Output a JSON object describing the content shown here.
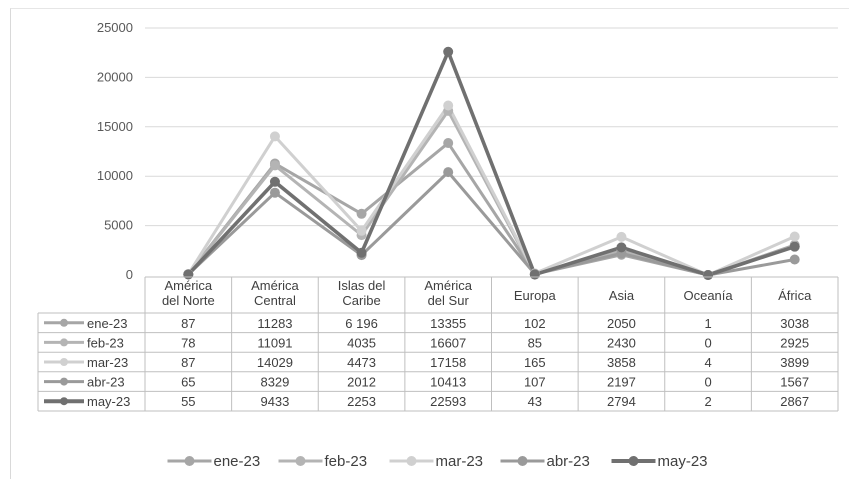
{
  "chart_data": {
    "type": "line",
    "categories": [
      [
        "América",
        "del Norte"
      ],
      [
        "América",
        "Central"
      ],
      [
        "Islas del",
        "Caribe"
      ],
      [
        "América",
        "del Sur"
      ],
      [
        "Europa"
      ],
      [
        "Asia"
      ],
      [
        "Oceanía"
      ],
      [
        "África"
      ]
    ],
    "ylim": [
      0,
      25000
    ],
    "yticks": [
      "0",
      "5000",
      "10000",
      "15000",
      "20000",
      "25000"
    ],
    "grid": true,
    "legend_position": "bottom",
    "data_table": true,
    "series": [
      {
        "name": "ene-23",
        "color": "#a6a6a6",
        "values": [
          87,
          11283,
          6196,
          13355,
          102,
          2050,
          1,
          3038
        ],
        "labels": [
          "87",
          "11283",
          "6 196",
          "13355",
          "102",
          "2050",
          "1",
          "3038"
        ]
      },
      {
        "name": "feb-23",
        "color": "#b4b4b4",
        "values": [
          78,
          11091,
          4035,
          16607,
          85,
          2430,
          0,
          2925
        ],
        "labels": [
          "78",
          "11091",
          "4035",
          "16607",
          "85",
          "2430",
          "0",
          "2925"
        ]
      },
      {
        "name": "mar-23",
        "color": "#d0d0d0",
        "values": [
          87,
          14029,
          4473,
          17158,
          165,
          3858,
          4,
          3899
        ],
        "labels": [
          "87",
          "14029",
          "4473",
          "17158",
          "165",
          "3858",
          "4",
          "3899"
        ]
      },
      {
        "name": "abr-23",
        "color": "#9a9a9a",
        "values": [
          65,
          8329,
          2012,
          10413,
          107,
          2197,
          0,
          1567
        ],
        "labels": [
          "65",
          "8329",
          "2012",
          "10413",
          "107",
          "2197",
          "0",
          "1567"
        ]
      },
      {
        "name": "may-23",
        "color": "#707070",
        "values": [
          55,
          9433,
          2253,
          22593,
          43,
          2794,
          2,
          2867
        ],
        "labels": [
          "55",
          "9433",
          "2253",
          "22593",
          "43",
          "2794",
          "2",
          "2867"
        ]
      }
    ]
  }
}
